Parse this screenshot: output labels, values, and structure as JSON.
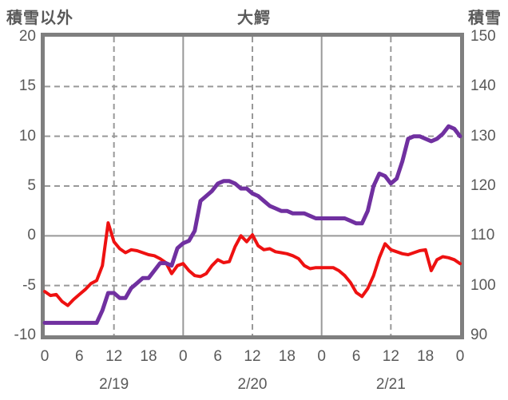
{
  "chart_data": {
    "type": "line",
    "title": "大鰐",
    "left_axis": {
      "title": "積雪以外",
      "min": -10,
      "max": 20,
      "tick_values": [
        20,
        15,
        10,
        5,
        0,
        -5,
        -10
      ],
      "tick_labels": [
        "20",
        "15",
        "10",
        "5",
        "0",
        "-5",
        "-10"
      ]
    },
    "right_axis": {
      "title": "積雪",
      "min": 90,
      "max": 150,
      "tick_values": [
        150,
        140,
        130,
        120,
        110,
        100,
        90
      ],
      "tick_labels": [
        "150",
        "140",
        "130",
        "120",
        "110",
        "100",
        "90"
      ]
    },
    "x_axis": {
      "unit": "hour",
      "range_hours": [
        0,
        72
      ],
      "tick_hours": [
        0,
        6,
        12,
        18,
        24,
        30,
        36,
        42,
        48,
        54,
        60,
        66,
        72
      ],
      "tick_labels": [
        "0",
        "6",
        "12",
        "18",
        "0",
        "6",
        "12",
        "18",
        "0",
        "6",
        "12",
        "18",
        "0"
      ],
      "date_labels": [
        {
          "label": "2/19",
          "center_hour": 12
        },
        {
          "label": "2/20",
          "center_hour": 36
        },
        {
          "label": "2/21",
          "center_hour": 60
        }
      ]
    },
    "gridlines": {
      "grid_on": true,
      "h_dashed_left_values": [
        15,
        10,
        5,
        -5
      ],
      "h_solid_left_values": [
        0
      ],
      "v_dashed_hours": [
        12,
        36,
        60
      ],
      "v_solid_hours": [
        24,
        48
      ]
    },
    "colors": {
      "frame": "#7f7f7f",
      "grid": "#999999",
      "text": "#595959",
      "red_series": "#ee1111",
      "purple_series": "#7030a0"
    },
    "series": [
      {
        "name": "積雪以外",
        "axis": "left",
        "color": "#ee1111",
        "stroke_width": 4,
        "values": [
          -5.6,
          -6.0,
          -5.9,
          -6.6,
          -7.0,
          -6.4,
          -5.9,
          -5.4,
          -4.8,
          -4.5,
          -3.0,
          1.3,
          -0.6,
          -1.3,
          -1.7,
          -1.4,
          -1.5,
          -1.7,
          -1.9,
          -2.0,
          -2.3,
          -2.7,
          -3.8,
          -3.0,
          -2.8,
          -3.5,
          -4.0,
          -4.1,
          -3.8,
          -3.0,
          -2.4,
          -2.7,
          -2.6,
          -1.1,
          0.0,
          -0.6,
          0.1,
          -1.0,
          -1.4,
          -1.3,
          -1.6,
          -1.7,
          -1.8,
          -2.0,
          -2.3,
          -3.0,
          -3.3,
          -3.2,
          -3.2,
          -3.2,
          -3.2,
          -3.5,
          -4.0,
          -4.7,
          -5.7,
          -6.1,
          -5.3,
          -4.0,
          -2.2,
          -0.8,
          -1.4,
          -1.6,
          -1.8,
          -1.9,
          -1.7,
          -1.5,
          -1.4,
          -3.5,
          -2.4,
          -2.1,
          -2.2,
          -2.4,
          -2.8
        ]
      },
      {
        "name": "積雪",
        "axis": "right",
        "color": "#7030a0",
        "stroke_width": 5,
        "values": [
          92.5,
          92.5,
          92.5,
          92.5,
          92.5,
          92.5,
          92.5,
          92.5,
          92.5,
          92.5,
          95.0,
          98.5,
          98.5,
          97.5,
          97.5,
          99.5,
          100.5,
          101.5,
          101.5,
          103.0,
          104.5,
          104.5,
          104.0,
          107.5,
          108.5,
          109.0,
          111.0,
          117.0,
          118.0,
          119.0,
          120.5,
          121.0,
          121.0,
          120.5,
          119.5,
          119.5,
          118.5,
          118.0,
          117.0,
          116.0,
          115.5,
          115.0,
          115.0,
          114.5,
          114.5,
          114.5,
          114.0,
          113.5,
          113.5,
          113.5,
          113.5,
          113.5,
          113.5,
          113.0,
          112.5,
          112.5,
          115.0,
          120.0,
          122.5,
          122.0,
          120.5,
          121.5,
          125.0,
          129.5,
          130.0,
          130.0,
          129.5,
          129.0,
          129.5,
          130.5,
          132.0,
          131.5,
          130.0
        ]
      }
    ]
  }
}
